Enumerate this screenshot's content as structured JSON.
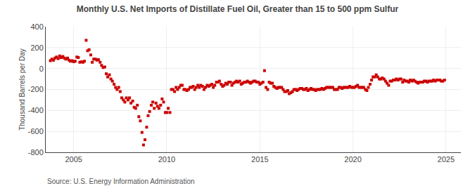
{
  "chart_data": {
    "type": "scatter",
    "title": "Monthly U.S. Net Imports of Distillate Fuel Oil, Greater than 15 to 500 ppm Sulfur",
    "ylabel": "Thousand Barrels per Day",
    "annotations": [
      "Source: U.S. Energy Information Administration"
    ],
    "color": "#cc0000",
    "marker": "square",
    "grid": true,
    "xlim": [
      2003.5,
      2025.8
    ],
    "xticks": [
      2005,
      2010,
      2015,
      2020,
      2025
    ],
    "ylim": [
      -800,
      400
    ],
    "yticks": [
      -800,
      -600,
      -400,
      -200,
      0,
      200,
      400
    ],
    "x": [
      2003.75,
      2003.83,
      2003.92,
      2004.0,
      2004.08,
      2004.17,
      2004.25,
      2004.33,
      2004.42,
      2004.5,
      2004.58,
      2004.67,
      2004.75,
      2004.83,
      2004.92,
      2005.0,
      2005.08,
      2005.17,
      2005.25,
      2005.33,
      2005.42,
      2005.5,
      2005.58,
      2005.67,
      2005.75,
      2005.83,
      2005.92,
      2006.0,
      2006.08,
      2006.17,
      2006.25,
      2006.33,
      2006.42,
      2006.5,
      2006.58,
      2006.67,
      2006.75,
      2006.83,
      2006.92,
      2007.0,
      2007.08,
      2007.17,
      2007.25,
      2007.33,
      2007.42,
      2007.5,
      2007.58,
      2007.67,
      2007.75,
      2007.83,
      2007.92,
      2008.0,
      2008.08,
      2008.17,
      2008.25,
      2008.33,
      2008.42,
      2008.5,
      2008.58,
      2008.67,
      2008.75,
      2008.83,
      2008.92,
      2009.0,
      2009.08,
      2009.17,
      2009.25,
      2009.33,
      2009.42,
      2009.5,
      2009.58,
      2009.67,
      2009.75,
      2009.83,
      2009.92,
      2010.0,
      2010.08,
      2010.17,
      2010.25,
      2010.33,
      2010.42,
      2010.5,
      2010.58,
      2010.67,
      2010.75,
      2010.83,
      2010.92,
      2011.0,
      2011.08,
      2011.17,
      2011.25,
      2011.33,
      2011.42,
      2011.5,
      2011.58,
      2011.67,
      2011.75,
      2011.83,
      2011.92,
      2012.0,
      2012.08,
      2012.17,
      2012.25,
      2012.33,
      2012.42,
      2012.5,
      2012.58,
      2012.67,
      2012.75,
      2012.83,
      2012.92,
      2013.0,
      2013.08,
      2013.17,
      2013.25,
      2013.33,
      2013.42,
      2013.5,
      2013.58,
      2013.67,
      2013.75,
      2013.83,
      2013.92,
      2014.0,
      2014.08,
      2014.17,
      2014.25,
      2014.33,
      2014.42,
      2014.5,
      2014.58,
      2014.67,
      2014.75,
      2014.83,
      2014.92,
      2015.0,
      2015.08,
      2015.17,
      2015.25,
      2015.33,
      2015.42,
      2015.5,
      2015.58,
      2015.67,
      2015.75,
      2015.83,
      2015.92,
      2016.0,
      2016.08,
      2016.17,
      2016.25,
      2016.33,
      2016.42,
      2016.5,
      2016.58,
      2016.67,
      2016.75,
      2016.83,
      2016.92,
      2017.0,
      2017.08,
      2017.17,
      2017.25,
      2017.33,
      2017.42,
      2017.5,
      2017.58,
      2017.67,
      2017.75,
      2017.83,
      2017.92,
      2018.0,
      2018.08,
      2018.17,
      2018.25,
      2018.33,
      2018.42,
      2018.5,
      2018.58,
      2018.67,
      2018.75,
      2018.83,
      2018.92,
      2019.0,
      2019.08,
      2019.17,
      2019.25,
      2019.33,
      2019.42,
      2019.5,
      2019.58,
      2019.67,
      2019.75,
      2019.83,
      2019.92,
      2020.0,
      2020.08,
      2020.17,
      2020.25,
      2020.33,
      2020.42,
      2020.5,
      2020.58,
      2020.67,
      2020.75,
      2020.83,
      2020.92,
      2021.0,
      2021.08,
      2021.17,
      2021.25,
      2021.33,
      2021.42,
      2021.5,
      2021.58,
      2021.67,
      2021.75,
      2021.83,
      2021.92,
      2022.0,
      2022.08,
      2022.17,
      2022.25,
      2022.33,
      2022.42,
      2022.5,
      2022.58,
      2022.67,
      2022.75,
      2022.83,
      2022.92,
      2023.0,
      2023.08,
      2023.17,
      2023.25,
      2023.33,
      2023.42,
      2023.5,
      2023.58,
      2023.67,
      2023.75,
      2023.83,
      2023.92,
      2024.0,
      2024.08,
      2024.17,
      2024.25,
      2024.33,
      2024.42,
      2024.5,
      2024.58,
      2024.67,
      2024.75,
      2024.83,
      2024.92
    ],
    "values": [
      75,
      90,
      80,
      100,
      110,
      95,
      120,
      105,
      115,
      100,
      90,
      100,
      80,
      70,
      75,
      65,
      70,
      110,
      105,
      60,
      65,
      60,
      70,
      270,
      170,
      180,
      130,
      60,
      90,
      90,
      80,
      85,
      60,
      30,
      10,
      15,
      -50,
      -80,
      -60,
      -100,
      -120,
      -150,
      -180,
      -200,
      -180,
      -220,
      -280,
      -300,
      -320,
      -280,
      -300,
      -280,
      -330,
      -310,
      -370,
      -380,
      -350,
      -460,
      -500,
      -610,
      -730,
      -680,
      -560,
      -450,
      -410,
      -350,
      -320,
      -380,
      -330,
      -360,
      -380,
      -350,
      -290,
      -320,
      -420,
      -420,
      -380,
      -420,
      -200,
      -200,
      -220,
      -180,
      -200,
      -180,
      -160,
      -160,
      -200,
      -200,
      -210,
      -200,
      -180,
      -180,
      -170,
      -200,
      -180,
      -160,
      -180,
      -160,
      -170,
      -200,
      -180,
      -160,
      -170,
      -160,
      -150,
      -180,
      -160,
      -130,
      -130,
      -120,
      -150,
      -170,
      -160,
      -140,
      -150,
      -130,
      -130,
      -160,
      -140,
      -130,
      -120,
      -130,
      -120,
      -150,
      -140,
      -130,
      -130,
      -120,
      -130,
      -140,
      -130,
      -120,
      -120,
      -130,
      -130,
      -150,
      -140,
      -130,
      -20,
      -180,
      -200,
      -130,
      -140,
      -140,
      -170,
      -180,
      -190,
      -180,
      -180,
      -180,
      -200,
      -220,
      -220,
      -210,
      -240,
      -230,
      -220,
      -200,
      -200,
      -210,
      -200,
      -190,
      -190,
      -200,
      -200,
      -190,
      -210,
      -200,
      -190,
      -200,
      -200,
      -210,
      -200,
      -200,
      -200,
      -190,
      -200,
      -190,
      -180,
      -180,
      -180,
      -180,
      -180,
      -200,
      -200,
      -200,
      -180,
      -180,
      -190,
      -180,
      -180,
      -180,
      -180,
      -170,
      -180,
      -180,
      -180,
      -170,
      -160,
      -180,
      -180,
      -180,
      -180,
      -200,
      -210,
      -180,
      -150,
      -110,
      -80,
      -80,
      -60,
      -80,
      -100,
      -100,
      -90,
      -100,
      -120,
      -140,
      -160,
      -120,
      -120,
      -110,
      -110,
      -100,
      -110,
      -100,
      -100,
      -130,
      -110,
      -120,
      -120,
      -130,
      -110,
      -120,
      -110,
      -120,
      -130,
      -140,
      -130,
      -130,
      -130,
      -120,
      -120,
      -130,
      -120,
      -120,
      -120,
      -110,
      -120,
      -110,
      -110,
      -110,
      -120,
      -120,
      -110
    ]
  }
}
